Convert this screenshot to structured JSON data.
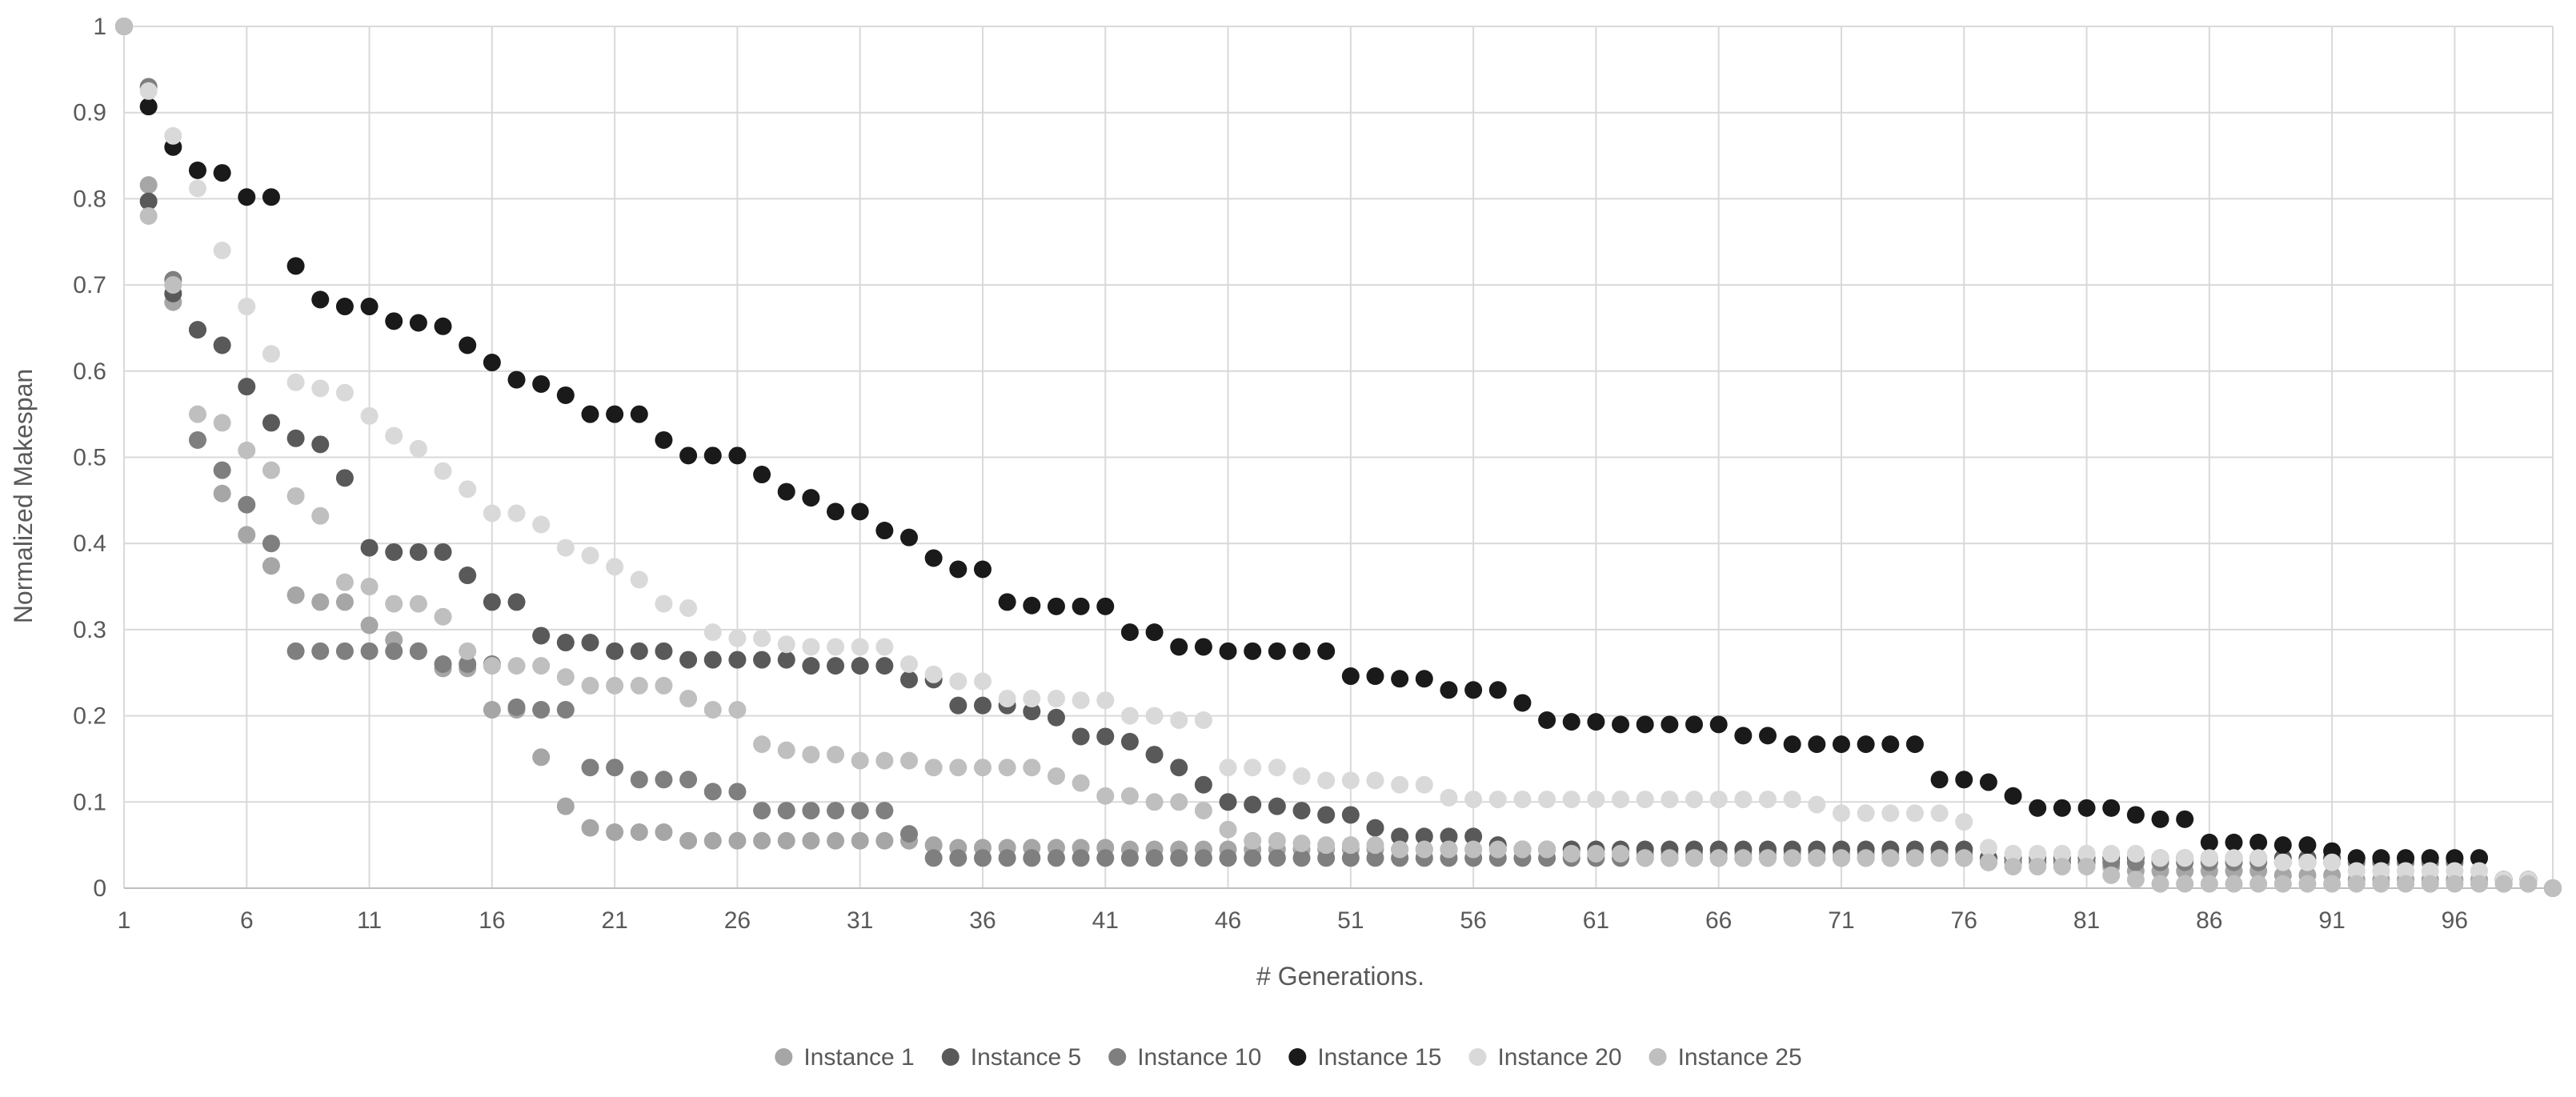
{
  "chart_data": {
    "type": "scatter",
    "title": "",
    "xlabel": "# Generations.",
    "ylabel": "Normalized Makespan",
    "xlim": [
      1,
      100
    ],
    "ylim": [
      0,
      1
    ],
    "x_tick_labels": [
      "1",
      "6",
      "11",
      "16",
      "21",
      "26",
      "31",
      "36",
      "41",
      "46",
      "51",
      "56",
      "61",
      "66",
      "71",
      "76",
      "81",
      "86",
      "91",
      "96"
    ],
    "y_tick_labels": [
      "0",
      "0.1",
      "0.2",
      "0.3",
      "0.4",
      "0.5",
      "0.6",
      "0.7",
      "0.8",
      "0.9",
      "1"
    ],
    "grid": true,
    "legend_position": "bottom",
    "x": [
      1,
      2,
      3,
      4,
      5,
      6,
      7,
      8,
      9,
      10,
      11,
      12,
      13,
      14,
      15,
      16,
      17,
      18,
      19,
      20,
      21,
      22,
      23,
      24,
      25,
      26,
      27,
      28,
      29,
      30,
      31,
      32,
      33,
      34,
      35,
      36,
      37,
      38,
      39,
      40,
      41,
      42,
      43,
      44,
      45,
      46,
      47,
      48,
      49,
      50,
      51,
      52,
      53,
      54,
      55,
      56,
      57,
      58,
      59,
      60,
      61,
      62,
      63,
      64,
      65,
      66,
      67,
      68,
      69,
      70,
      71,
      72,
      73,
      74,
      75,
      76,
      77,
      78,
      79,
      80,
      81,
      82,
      83,
      84,
      85,
      86,
      87,
      88,
      89,
      90,
      91,
      92,
      93,
      94,
      95,
      96,
      97,
      98,
      99,
      100
    ],
    "series": [
      {
        "name": "Instance 1",
        "color": "#a6a6a6",
        "values": [
          1,
          0.816,
          0.68,
          0.648,
          0.458,
          0.41,
          0.374,
          0.34,
          0.332,
          0.332,
          0.305,
          0.288,
          0.275,
          0.255,
          0.255,
          0.207,
          0.207,
          0.152,
          0.095,
          0.07,
          0.065,
          0.065,
          0.065,
          0.055,
          0.055,
          0.055,
          0.055,
          0.055,
          0.055,
          0.055,
          0.055,
          0.055,
          0.055,
          0.05,
          0.047,
          0.047,
          0.047,
          0.047,
          0.047,
          0.047,
          0.047,
          0.045,
          0.045,
          0.045,
          0.045,
          0.045,
          0.045,
          0.045,
          0.045,
          0.045,
          0.045,
          0.045,
          0.045,
          0.045,
          0.045,
          0.045,
          0.045,
          0.045,
          0.045,
          0.045,
          0.04,
          0.04,
          0.04,
          0.04,
          0.04,
          0.04,
          0.04,
          0.04,
          0.04,
          0.04,
          0.04,
          0.04,
          0.04,
          0.04,
          0.04,
          0.04,
          0.035,
          0.03,
          0.03,
          0.03,
          0.03,
          0.025,
          0.02,
          0.02,
          0.02,
          0.02,
          0.02,
          0.02,
          0.015,
          0.015,
          0.015,
          0.01,
          0.01,
          0.01,
          0.01,
          0.01,
          0.01,
          0.005,
          0.005,
          0
        ]
      },
      {
        "name": "Instance 5",
        "color": "#595959",
        "values": [
          1,
          0.797,
          0.69,
          0.648,
          0.63,
          0.582,
          0.54,
          0.522,
          0.515,
          0.476,
          0.395,
          0.39,
          0.39,
          0.39,
          0.363,
          0.332,
          0.332,
          0.293,
          0.285,
          0.285,
          0.275,
          0.275,
          0.275,
          0.265,
          0.265,
          0.265,
          0.265,
          0.265,
          0.258,
          0.258,
          0.258,
          0.258,
          0.242,
          0.242,
          0.212,
          0.212,
          0.212,
          0.205,
          0.198,
          0.176,
          0.176,
          0.17,
          0.155,
          0.14,
          0.12,
          0.1,
          0.097,
          0.095,
          0.09,
          0.085,
          0.085,
          0.07,
          0.06,
          0.06,
          0.06,
          0.06,
          0.05,
          0.045,
          0.045,
          0.045,
          0.045,
          0.045,
          0.045,
          0.045,
          0.045,
          0.045,
          0.045,
          0.045,
          0.045,
          0.045,
          0.045,
          0.045,
          0.045,
          0.045,
          0.045,
          0.045,
          0.035,
          0.035,
          0.035,
          0.035,
          0.035,
          0.035,
          0.035,
          0.035,
          0.035,
          0.035,
          0.035,
          0.035,
          0.035,
          0.035,
          0.035,
          0.035,
          0.035,
          0.035,
          0.035,
          0.035,
          0.035,
          0.01,
          0.01,
          0
        ]
      },
      {
        "name": "Instance 10",
        "color": "#7f7f7f",
        "values": [
          1,
          0.93,
          0.706,
          0.52,
          0.485,
          0.445,
          0.4,
          0.275,
          0.275,
          0.275,
          0.275,
          0.275,
          0.275,
          0.26,
          0.26,
          0.26,
          0.21,
          0.207,
          0.207,
          0.14,
          0.14,
          0.126,
          0.126,
          0.126,
          0.112,
          0.112,
          0.09,
          0.09,
          0.09,
          0.09,
          0.09,
          0.09,
          0.063,
          0.035,
          0.035,
          0.035,
          0.035,
          0.035,
          0.035,
          0.035,
          0.035,
          0.035,
          0.035,
          0.035,
          0.035,
          0.035,
          0.035,
          0.035,
          0.035,
          0.035,
          0.035,
          0.035,
          0.035,
          0.035,
          0.035,
          0.035,
          0.035,
          0.035,
          0.035,
          0.035,
          0.035,
          0.035,
          0.035,
          0.035,
          0.035,
          0.035,
          0.035,
          0.035,
          0.035,
          0.035,
          0.035,
          0.035,
          0.035,
          0.035,
          0.035,
          0.035,
          0.03,
          0.03,
          0.03,
          0.03,
          0.03,
          0.03,
          0.03,
          0.03,
          0.03,
          0.03,
          0.03,
          0.03,
          0.03,
          0.03,
          0.03,
          0.03,
          0.03,
          0.03,
          0.03,
          0.03,
          0.035,
          0.01,
          0.01,
          0
        ]
      },
      {
        "name": "Instance 15",
        "color": "#1a1a1a",
        "values": [
          1,
          0.907,
          0.86,
          0.833,
          0.83,
          0.802,
          0.802,
          0.722,
          0.683,
          0.675,
          0.675,
          0.658,
          0.656,
          0.652,
          0.63,
          0.61,
          0.59,
          0.585,
          0.572,
          0.55,
          0.55,
          0.55,
          0.52,
          0.502,
          0.502,
          0.502,
          0.48,
          0.46,
          0.453,
          0.437,
          0.437,
          0.415,
          0.407,
          0.383,
          0.37,
          0.37,
          0.332,
          0.328,
          0.327,
          0.327,
          0.327,
          0.297,
          0.297,
          0.28,
          0.28,
          0.275,
          0.275,
          0.275,
          0.275,
          0.275,
          0.246,
          0.246,
          0.243,
          0.243,
          0.23,
          0.23,
          0.23,
          0.215,
          0.195,
          0.193,
          0.193,
          0.19,
          0.19,
          0.19,
          0.19,
          0.19,
          0.177,
          0.177,
          0.167,
          0.167,
          0.167,
          0.167,
          0.167,
          0.167,
          0.126,
          0.126,
          0.123,
          0.107,
          0.093,
          0.093,
          0.093,
          0.093,
          0.085,
          0.08,
          0.08,
          0.053,
          0.053,
          0.053,
          0.05,
          0.05,
          0.043,
          0.035,
          0.035,
          0.035,
          0.035,
          0.035,
          0.035,
          0.01,
          0.01,
          0
        ]
      },
      {
        "name": "Instance 20",
        "color": "#d9d9d9",
        "values": [
          1,
          0.925,
          0.873,
          0.812,
          0.74,
          0.675,
          0.62,
          0.587,
          0.58,
          0.575,
          0.548,
          0.525,
          0.51,
          0.484,
          0.463,
          0.435,
          0.435,
          0.422,
          0.395,
          0.386,
          0.373,
          0.358,
          0.33,
          0.325,
          0.297,
          0.29,
          0.29,
          0.283,
          0.28,
          0.28,
          0.28,
          0.28,
          0.26,
          0.248,
          0.24,
          0.24,
          0.22,
          0.22,
          0.22,
          0.218,
          0.218,
          0.2,
          0.2,
          0.195,
          0.195,
          0.14,
          0.14,
          0.14,
          0.13,
          0.125,
          0.125,
          0.125,
          0.12,
          0.12,
          0.105,
          0.103,
          0.103,
          0.103,
          0.103,
          0.103,
          0.103,
          0.103,
          0.103,
          0.103,
          0.103,
          0.103,
          0.103,
          0.103,
          0.103,
          0.097,
          0.087,
          0.087,
          0.087,
          0.087,
          0.087,
          0.077,
          0.047,
          0.04,
          0.04,
          0.04,
          0.04,
          0.04,
          0.04,
          0.035,
          0.035,
          0.035,
          0.035,
          0.035,
          0.03,
          0.03,
          0.03,
          0.02,
          0.02,
          0.02,
          0.02,
          0.02,
          0.02,
          0.01,
          0.01,
          0
        ]
      },
      {
        "name": "Instance 25",
        "color": "#bfbfbf",
        "values": [
          1,
          0.78,
          0.7,
          0.55,
          0.54,
          0.508,
          0.485,
          0.455,
          0.432,
          0.355,
          0.35,
          0.33,
          0.33,
          0.315,
          0.275,
          0.258,
          0.258,
          0.258,
          0.245,
          0.235,
          0.235,
          0.235,
          0.235,
          0.22,
          0.207,
          0.207,
          0.167,
          0.16,
          0.155,
          0.155,
          0.148,
          0.148,
          0.148,
          0.14,
          0.14,
          0.14,
          0.14,
          0.14,
          0.13,
          0.122,
          0.107,
          0.107,
          0.1,
          0.1,
          0.09,
          0.068,
          0.055,
          0.055,
          0.052,
          0.05,
          0.05,
          0.05,
          0.045,
          0.045,
          0.045,
          0.045,
          0.045,
          0.045,
          0.045,
          0.04,
          0.04,
          0.04,
          0.035,
          0.035,
          0.035,
          0.035,
          0.035,
          0.035,
          0.035,
          0.035,
          0.035,
          0.035,
          0.035,
          0.035,
          0.035,
          0.035,
          0.03,
          0.025,
          0.025,
          0.025,
          0.025,
          0.015,
          0.01,
          0.005,
          0.005,
          0.005,
          0.005,
          0.005,
          0.005,
          0.005,
          0.005,
          0.005,
          0.005,
          0.005,
          0.005,
          0.005,
          0.005,
          0.005,
          0.005,
          0
        ]
      }
    ]
  }
}
